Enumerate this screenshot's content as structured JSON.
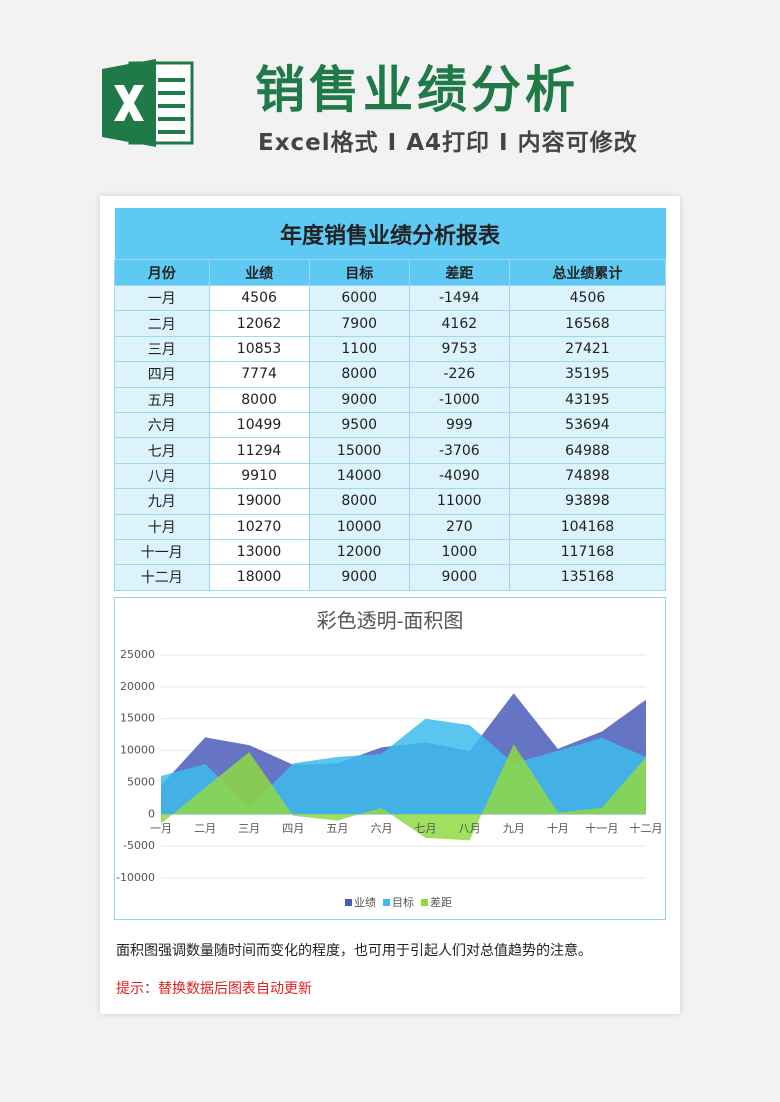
{
  "header": {
    "title": "销售业绩分析",
    "subtitle": "Excel格式 I A4打印 I 内容可修改"
  },
  "table": {
    "title": "年度销售业绩分析报表",
    "month_header": "月份",
    "total_header": "总业绩累计",
    "totals": [
      4506,
      16568,
      27421,
      35195,
      43195,
      53694,
      64988,
      74898,
      93898,
      104168,
      117168,
      135168
    ]
  },
  "chart_data": {
    "type": "area",
    "title": "彩色透明-面积图",
    "categories": [
      "一月",
      "二月",
      "三月",
      "四月",
      "五月",
      "六月",
      "七月",
      "八月",
      "九月",
      "十月",
      "十一月",
      "十二月"
    ],
    "series": [
      {
        "name": "业绩",
        "color": "#4a5cb8",
        "values": [
          4506,
          12062,
          10853,
          7774,
          8000,
          10499,
          11294,
          9910,
          19000,
          10270,
          13000,
          18000
        ]
      },
      {
        "name": "目标",
        "color": "#3dbbec",
        "values": [
          6000,
          7900,
          1100,
          8000,
          9000,
          9500,
          15000,
          14000,
          8000,
          10000,
          12000,
          9000
        ]
      },
      {
        "name": "差距",
        "color": "#8fd944",
        "values": [
          -1494,
          4162,
          9753,
          -226,
          -1000,
          999,
          -3706,
          -4090,
          11000,
          270,
          1000,
          9000
        ]
      }
    ],
    "ylim": [
      -10000,
      25000
    ],
    "yticks": [
      -10000,
      -5000,
      0,
      5000,
      10000,
      15000,
      20000,
      25000
    ],
    "grid": true,
    "legend": "bottom"
  },
  "notes": [
    "面积图强调数量随时间而变化的程度，也可用于引起人们对总值趋势的注意。",
    "提示：替换数据后图表自动更新"
  ]
}
